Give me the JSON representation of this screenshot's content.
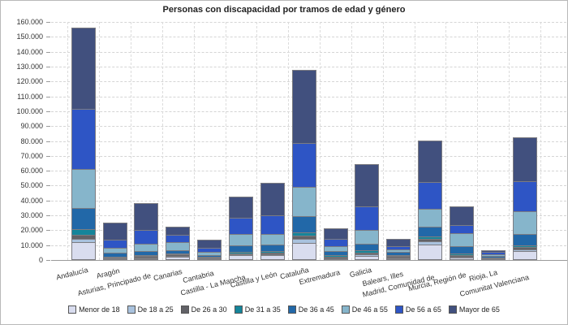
{
  "chart_data": {
    "type": "bar",
    "stacked": true,
    "title": "Personas con discapacidad por tramos de edad y género",
    "xlabel": "",
    "ylabel": "",
    "ylim": [
      0,
      160000
    ],
    "ytick_step": 10000,
    "ytick_labels": [
      "0",
      "10.000",
      "20.000",
      "30.000",
      "40.000",
      "50.000",
      "60.000",
      "70.000",
      "80.000",
      "90.000",
      "100.000",
      "110.000",
      "120.000",
      "130.000",
      "140.000",
      "150.000",
      "160.000"
    ],
    "grid": "dashed horizontal and vertical",
    "legend_position": "bottom",
    "axis_color": "#9a9a9a",
    "gridline_color": "#d5d5d5",
    "bar_outline_color": "#7c7c81",
    "categories": [
      "Andalucía",
      "Aragón",
      "Asturias, Principado de",
      "Canarias",
      "Cantabria",
      "Castilla - La Mancha",
      "Castilla y León",
      "Cataluña",
      "Extremadura",
      "Galicia",
      "Balears, Illes",
      "Madrid, Comunidad de",
      "Murcia, Región de",
      "Rioja, La",
      "Comunitat Valenciana"
    ],
    "series": [
      {
        "name": "Menor de 18",
        "color": "#d9ddef",
        "values": [
          12200,
          800,
          1250,
          2200,
          800,
          3100,
          3450,
          11600,
          550,
          2900,
          1250,
          10200,
          1650,
          700,
          5800
        ]
      },
      {
        "name": "De 18 a 25",
        "color": "#a9c2de",
        "values": [
          1800,
          400,
          550,
          500,
          300,
          550,
          550,
          2750,
          550,
          750,
          550,
          2500,
          550,
          350,
          1300
        ]
      },
      {
        "name": "De 26 a 30",
        "color": "#626267",
        "values": [
          2700,
          500,
          900,
          950,
          550,
          700,
          900,
          1850,
          1100,
          1250,
          900,
          1300,
          900,
          350,
          1450
        ]
      },
      {
        "name": "De 31 a 35",
        "color": "#15859a",
        "values": [
          4000,
          500,
          750,
          900,
          550,
          1100,
          1250,
          2400,
          900,
          1500,
          750,
          1800,
          1450,
          400,
          1250
        ]
      },
      {
        "name": "De 36 a 45",
        "color": "#2268a8",
        "values": [
          14200,
          2700,
          2700,
          2150,
          1250,
          4350,
          4200,
          10900,
          2700,
          4500,
          2000,
          6700,
          4900,
          900,
          7500
        ]
      },
      {
        "name": "De 46 a 55",
        "color": "#86b5cb",
        "values": [
          26000,
          3300,
          4600,
          5150,
          1850,
          7500,
          6950,
          19600,
          3300,
          9100,
          1650,
          12000,
          8750,
          950,
          15300
        ]
      },
      {
        "name": "De 56 a 65",
        "color": "#2e55c5",
        "values": [
          40400,
          5500,
          9600,
          4900,
          2900,
          11250,
          12550,
          29800,
          4900,
          16200,
          2350,
          18000,
          5400,
          1650,
          20500
        ]
      },
      {
        "name": "Mayor de 65",
        "color": "#41507e",
        "values": [
          54700,
          11200,
          17650,
          5750,
          5300,
          14050,
          21950,
          49100,
          7300,
          28200,
          4900,
          27900,
          12200,
          1400,
          29100
        ]
      }
    ],
    "totals": [
      156000,
      24900,
      38000,
      22500,
      13500,
      42600,
      51800,
      128000,
      21300,
      64400,
      14350,
      80400,
      35800,
      6700,
      82200
    ]
  }
}
